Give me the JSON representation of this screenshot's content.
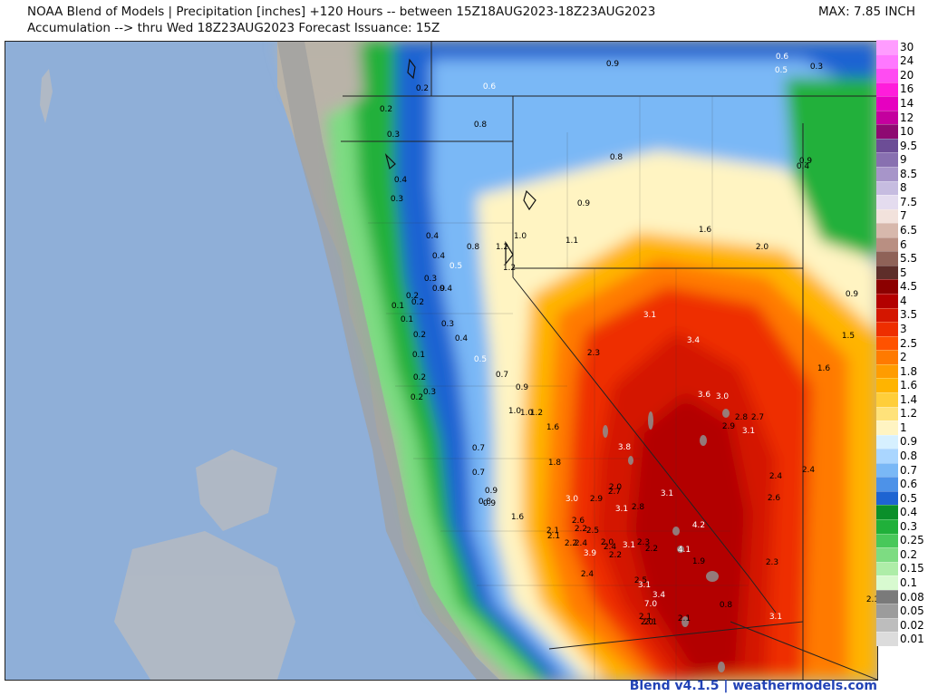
{
  "header": {
    "title": "NOAA Blend of Models | Precipitation [inches] +120 Hours -- between 15Z18AUG2023-18Z23AUG2023",
    "subtitle": "Accumulation --> thru Wed 18Z23AUG2023   Forecast Issuance: 15Z",
    "max": "MAX: 7.85 INCH"
  },
  "footer": {
    "credit": "Blend v4.1.5 | weathermodels.com"
  },
  "legend": {
    "items": [
      {
        "label": "30",
        "color": "#ff9cff"
      },
      {
        "label": "24",
        "color": "#ff78ff"
      },
      {
        "label": "20",
        "color": "#ff4cf2"
      },
      {
        "label": "16",
        "color": "#ff1ddb"
      },
      {
        "label": "14",
        "color": "#e600c0"
      },
      {
        "label": "12",
        "color": "#c4009e"
      },
      {
        "label": "10",
        "color": "#8e0a72"
      },
      {
        "label": "9.5",
        "color": "#6c4d96"
      },
      {
        "label": "9",
        "color": "#8870b0"
      },
      {
        "label": "8.5",
        "color": "#a795c9"
      },
      {
        "label": "8",
        "color": "#c6bce0"
      },
      {
        "label": "7.5",
        "color": "#e4dcef"
      },
      {
        "label": "7",
        "color": "#f2e2dc"
      },
      {
        "label": "6.5",
        "color": "#d7b8ac"
      },
      {
        "label": "6",
        "color": "#b98f82"
      },
      {
        "label": "5.5",
        "color": "#8f6258"
      },
      {
        "label": "5",
        "color": "#5e2e2a"
      },
      {
        "label": "4.5",
        "color": "#8c0000"
      },
      {
        "label": "4",
        "color": "#b30000"
      },
      {
        "label": "3.5",
        "color": "#d41600"
      },
      {
        "label": "3",
        "color": "#ee2e00"
      },
      {
        "label": "2.5",
        "color": "#ff5200"
      },
      {
        "label": "2",
        "color": "#ff7a00"
      },
      {
        "label": "1.8",
        "color": "#ff9c00"
      },
      {
        "label": "1.6",
        "color": "#ffb400"
      },
      {
        "label": "1.4",
        "color": "#ffce3a"
      },
      {
        "label": "1.2",
        "color": "#ffe27a"
      },
      {
        "label": "1",
        "color": "#fff4c2"
      },
      {
        "label": "0.9",
        "color": "#d6f0ff"
      },
      {
        "label": "0.8",
        "color": "#aad6ff"
      },
      {
        "label": "0.7",
        "color": "#7ab8f6"
      },
      {
        "label": "0.6",
        "color": "#4d92e8"
      },
      {
        "label": "0.5",
        "color": "#1e64d2"
      },
      {
        "label": "0.4",
        "color": "#0a8f2a"
      },
      {
        "label": "0.3",
        "color": "#20b03a"
      },
      {
        "label": "0.25",
        "color": "#48c85a"
      },
      {
        "label": "0.2",
        "color": "#7ddc82"
      },
      {
        "label": "0.15",
        "color": "#aeeda8"
      },
      {
        "label": "0.1",
        "color": "#d8fad0"
      },
      {
        "label": "0.08",
        "color": "#7a7a7a"
      },
      {
        "label": "0.05",
        "color": "#9c9c9c"
      },
      {
        "label": "0.02",
        "color": "#bdbdbd"
      },
      {
        "label": "0.01",
        "color": "#dcdcdc"
      }
    ]
  },
  "map_values": [
    {
      "t": "0.9"
    },
    {
      "t": "0.6"
    },
    {
      "t": "0.5"
    },
    {
      "t": "0.3"
    },
    {
      "t": "0.2"
    },
    {
      "t": "0.6"
    },
    {
      "t": "0.2"
    },
    {
      "t": "0.8"
    },
    {
      "t": "0.3"
    },
    {
      "t": "0.8"
    },
    {
      "t": "0.9"
    },
    {
      "t": "0.4"
    },
    {
      "t": "0.4"
    },
    {
      "t": "0.3"
    },
    {
      "t": "0.9"
    },
    {
      "t": "1.0"
    },
    {
      "t": "1.1"
    },
    {
      "t": "1.6"
    },
    {
      "t": "2.0"
    },
    {
      "t": "0.4"
    },
    {
      "t": "0.8"
    },
    {
      "t": "1.2"
    },
    {
      "t": "0.4"
    },
    {
      "t": "0.5"
    },
    {
      "t": "1.2"
    },
    {
      "t": "0.9"
    },
    {
      "t": "0.3"
    },
    {
      "t": "0.9"
    },
    {
      "t": "0.4"
    },
    {
      "t": "0.2"
    },
    {
      "t": "0.2"
    },
    {
      "t": "0.1"
    },
    {
      "t": "0.1"
    },
    {
      "t": "0.3"
    },
    {
      "t": "3.1"
    },
    {
      "t": "0.2"
    },
    {
      "t": "0.4"
    },
    {
      "t": "3.4"
    },
    {
      "t": "1.5"
    },
    {
      "t": "0.1"
    },
    {
      "t": "2.3"
    },
    {
      "t": "0.5"
    },
    {
      "t": "1.6"
    },
    {
      "t": "0.2"
    },
    {
      "t": "0.7"
    },
    {
      "t": "0.3"
    },
    {
      "t": "0.9"
    },
    {
      "t": "0.2"
    },
    {
      "t": "3.6"
    },
    {
      "t": "3.0"
    },
    {
      "t": "1.0"
    },
    {
      "t": "1.0"
    },
    {
      "t": "1.2"
    },
    {
      "t": "2.8"
    },
    {
      "t": "2.7"
    },
    {
      "t": "2.9"
    },
    {
      "t": "1.6"
    },
    {
      "t": "3.1"
    },
    {
      "t": "3.8"
    },
    {
      "t": "0.7"
    },
    {
      "t": "2.4"
    },
    {
      "t": "1.8"
    },
    {
      "t": "2.4"
    },
    {
      "t": "0.7"
    },
    {
      "t": "0.9"
    },
    {
      "t": "2.0"
    },
    {
      "t": "2.7"
    },
    {
      "t": "3.1"
    },
    {
      "t": "0.8"
    },
    {
      "t": "0.9"
    },
    {
      "t": "3.0"
    },
    {
      "t": "2.9"
    },
    {
      "t": "2.6"
    },
    {
      "t": "3.1"
    },
    {
      "t": "2.8"
    },
    {
      "t": "1.6"
    },
    {
      "t": "2.6"
    },
    {
      "t": "4.2"
    },
    {
      "t": "2.1"
    },
    {
      "t": "2.2"
    },
    {
      "t": "2.5"
    },
    {
      "t": "2.1"
    },
    {
      "t": "2.2"
    },
    {
      "t": "2.4"
    },
    {
      "t": "2.0"
    },
    {
      "t": "3.1"
    },
    {
      "t": "4.1"
    },
    {
      "t": "2.4"
    },
    {
      "t": "2.3"
    },
    {
      "t": "2.2"
    },
    {
      "t": "3.9"
    },
    {
      "t": "2.2"
    },
    {
      "t": "1.9"
    },
    {
      "t": "2.3"
    },
    {
      "t": "2.4"
    },
    {
      "t": "2.5"
    },
    {
      "t": "3.1"
    },
    {
      "t": "3.4"
    },
    {
      "t": "7.0"
    },
    {
      "t": "0.8"
    },
    {
      "t": "2.1"
    },
    {
      "t": "2.1"
    },
    {
      "t": "3.1"
    },
    {
      "t": "2.1"
    },
    {
      "t": "2.0"
    },
    {
      "t": "2.1"
    }
  ]
}
